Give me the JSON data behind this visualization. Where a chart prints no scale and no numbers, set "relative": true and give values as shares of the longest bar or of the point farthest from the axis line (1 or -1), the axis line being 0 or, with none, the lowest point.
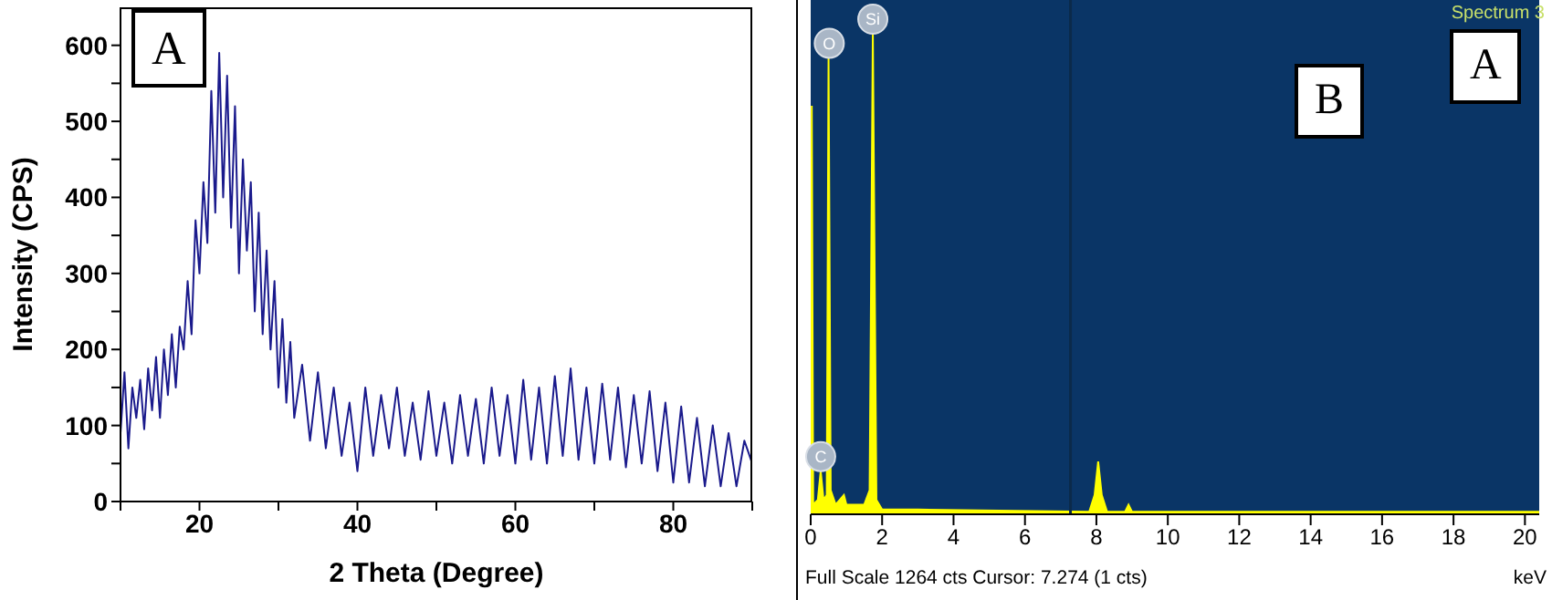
{
  "chart_data": [
    {
      "type": "line",
      "xlabel": "2 Theta (Degree)",
      "ylabel": "Intensity (CPS)",
      "annotations": [
        "A"
      ],
      "xlim": [
        10,
        90
      ],
      "ylim": [
        0,
        650
      ],
      "xticks": [
        {
          "value": 10,
          "label": null
        },
        20,
        {
          "value": 30,
          "label": null
        },
        40,
        {
          "value": 50,
          "label": null
        },
        60,
        {
          "value": 70,
          "label": null
        },
        80,
        {
          "value": 90,
          "label": null
        }
      ],
      "yticks": [
        0,
        {
          "value": 50,
          "label": null
        },
        100,
        {
          "value": 150,
          "label": null
        },
        200,
        {
          "value": 250,
          "label": null
        },
        300,
        {
          "value": 350,
          "label": null
        },
        400,
        {
          "value": 450,
          "label": null
        },
        500,
        {
          "value": 550,
          "label": null
        },
        600
      ],
      "x": [
        10,
        10.5,
        11,
        11.5,
        12,
        12.5,
        13,
        13.5,
        14,
        14.5,
        15,
        15.5,
        16,
        16.5,
        17,
        17.5,
        18,
        18.5,
        19,
        19.5,
        20,
        20.5,
        21,
        21.5,
        22,
        22.5,
        23,
        23.5,
        24,
        24.5,
        25,
        25.5,
        26,
        26.5,
        27,
        27.5,
        28,
        28.5,
        29,
        29.5,
        30,
        30.5,
        31,
        31.5,
        32,
        33,
        34,
        35,
        36,
        37,
        38,
        39,
        40,
        41,
        42,
        43,
        44,
        45,
        46,
        47,
        48,
        49,
        50,
        51,
        52,
        53,
        54,
        55,
        56,
        57,
        58,
        59,
        60,
        61,
        62,
        63,
        64,
        65,
        66,
        67,
        68,
        69,
        70,
        71,
        72,
        73,
        74,
        75,
        76,
        77,
        78,
        79,
        80,
        81,
        82,
        83,
        84,
        85,
        86,
        87,
        88,
        89,
        90
      ],
      "series": [
        {
          "color": "#1a1a8c",
          "values": [
            90,
            170,
            70,
            150,
            110,
            160,
            95,
            175,
            120,
            190,
            110,
            200,
            140,
            220,
            150,
            230,
            200,
            290,
            220,
            370,
            300,
            420,
            340,
            540,
            380,
            590,
            400,
            560,
            360,
            520,
            300,
            450,
            330,
            420,
            250,
            380,
            220,
            330,
            200,
            290,
            150,
            240,
            130,
            210,
            110,
            180,
            80,
            170,
            70,
            150,
            60,
            130,
            40,
            150,
            60,
            140,
            70,
            150,
            60,
            130,
            55,
            145,
            60,
            130,
            50,
            140,
            60,
            135,
            50,
            150,
            60,
            140,
            50,
            160,
            55,
            150,
            50,
            165,
            60,
            175,
            55,
            150,
            50,
            155,
            55,
            150,
            45,
            140,
            50,
            145,
            40,
            130,
            25,
            125,
            25,
            110,
            20,
            100,
            20,
            90,
            20,
            80,
            50
          ]
        }
      ]
    },
    {
      "type": "area",
      "relative": true,
      "xlabel": "keV",
      "xlim": [
        0,
        20.4
      ],
      "xticks": [
        0,
        2,
        4,
        6,
        8,
        10,
        12,
        14,
        16,
        18,
        20
      ],
      "x": [
        0,
        0.03,
        0.07,
        0.2,
        0.28,
        0.36,
        0.45,
        0.5,
        0.56,
        0.7,
        0.93,
        1.0,
        1.5,
        1.65,
        1.74,
        1.84,
        2.0,
        3.0,
        7.8,
        7.95,
        8.05,
        8.15,
        8.3,
        8.8,
        8.9,
        9.0,
        20.4
      ],
      "series": [
        {
          "color": "#ffff00",
          "values": [
            0,
            0.85,
            0.02,
            0.03,
            0.09,
            0.03,
            0.04,
            0.95,
            0.05,
            0.02,
            0.04,
            0.02,
            0.02,
            0.05,
            1,
            0.03,
            0.01,
            0.01,
            0.005,
            0.04,
            0.11,
            0.04,
            0.005,
            0.005,
            0.02,
            0.005,
            0.005
          ]
        }
      ],
      "ref_lines": [
        {
          "axis": "x",
          "value": 7.274,
          "color": "#0b2a4a"
        }
      ],
      "annotations": [
        "Spectrum 3",
        "B",
        "A",
        "Full Scale 1264 cts Cursor: 7.274  (1 cts)",
        {
          "text": "O",
          "x": 0.52,
          "y": 0.98
        },
        {
          "text": "Si",
          "x": 1.74,
          "y": 1.03
        },
        {
          "text": "C",
          "x": 0.28,
          "y": 0.12
        }
      ]
    }
  ]
}
